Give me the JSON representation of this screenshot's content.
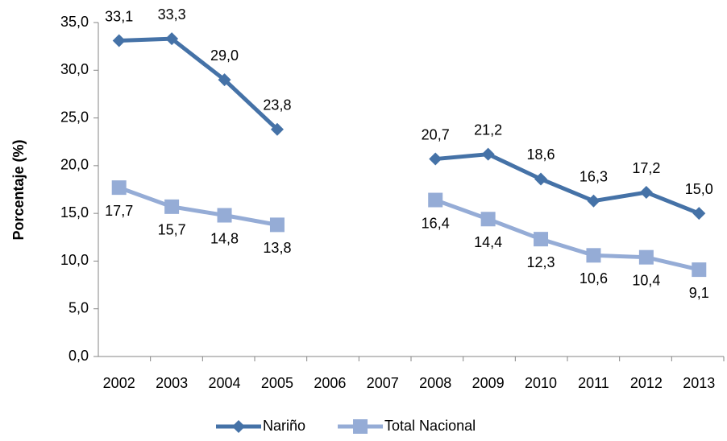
{
  "chart_data": {
    "type": "line",
    "y_label": "Porcentaje (%)",
    "categories": [
      "2002",
      "2003",
      "2004",
      "2005",
      "2006",
      "2007",
      "2008",
      "2009",
      "2010",
      "2011",
      "2012",
      "2013"
    ],
    "series": [
      {
        "name": "Nariño",
        "color": "#4572a7",
        "marker": "diamond",
        "values": [
          33.1,
          33.3,
          29.0,
          23.8,
          null,
          null,
          20.7,
          21.2,
          18.6,
          16.3,
          17.2,
          15.0
        ],
        "value_labels": [
          "33,1",
          "33,3",
          "29,0",
          "23,8",
          null,
          null,
          "20,7",
          "21,2",
          "18,6",
          "16,3",
          "17,2",
          "15,0"
        ],
        "label_position": "above"
      },
      {
        "name": "Total Nacional",
        "color": "#95acd6",
        "marker": "square",
        "values": [
          17.7,
          15.7,
          14.8,
          13.8,
          null,
          null,
          16.4,
          14.4,
          12.3,
          10.6,
          10.4,
          9.1
        ],
        "value_labels": [
          "17,7",
          "15,7",
          "14,8",
          "13,8",
          null,
          null,
          "16,4",
          "14,4",
          "12,3",
          "10,6",
          "10,4",
          "9,1"
        ],
        "label_position": "below"
      }
    ],
    "ylim": [
      0,
      35
    ],
    "yticks": [
      {
        "value": 0,
        "label": "0,0"
      },
      {
        "value": 5,
        "label": "5,0"
      },
      {
        "value": 10,
        "label": "10,0"
      },
      {
        "value": 15,
        "label": "15,0"
      },
      {
        "value": 20,
        "label": "20,0"
      },
      {
        "value": 25,
        "label": "25,0"
      },
      {
        "value": 30,
        "label": "30,0"
      },
      {
        "value": 35,
        "label": "35,0"
      }
    ],
    "grid": false,
    "legend": "bottom"
  }
}
